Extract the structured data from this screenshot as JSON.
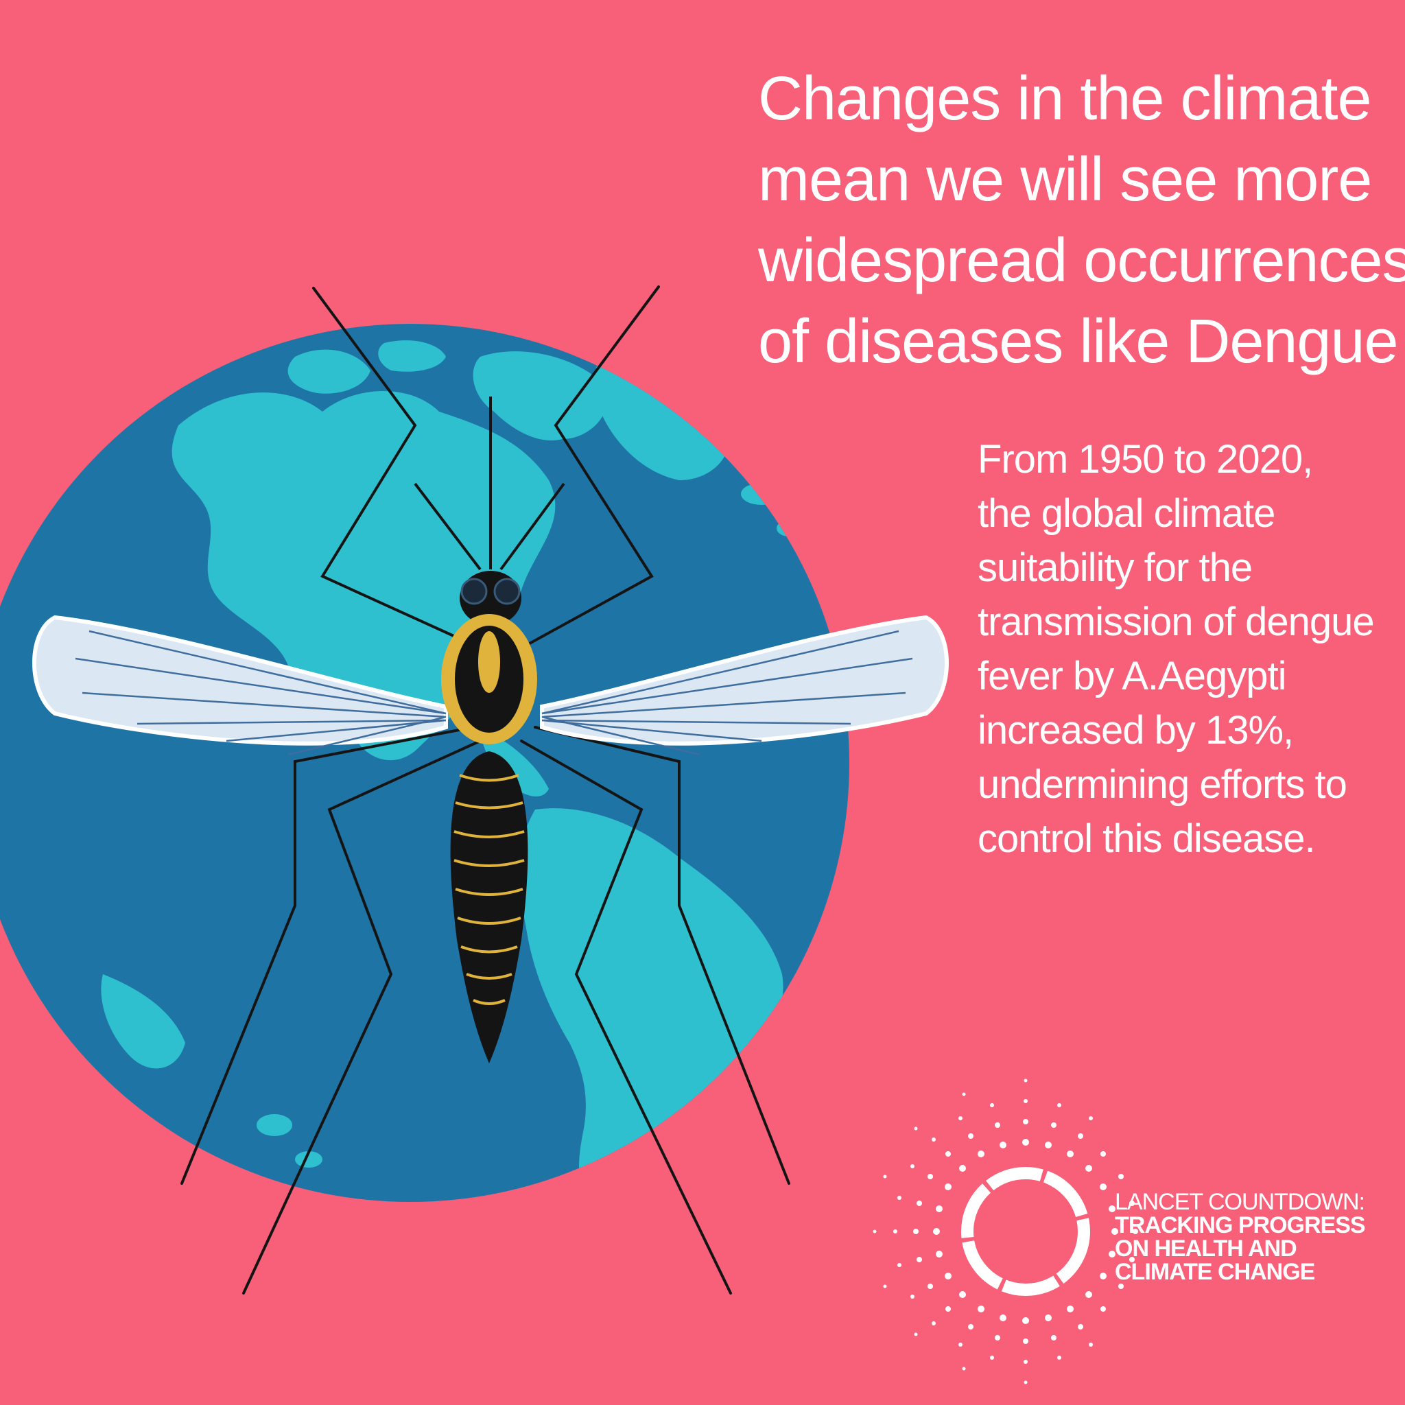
{
  "headline": {
    "lines": [
      "Changes in the climate",
      "mean we will see more",
      "widespread occurrences",
      "of diseases like Dengue"
    ]
  },
  "body": {
    "lines": [
      "From 1950 to 2020,",
      "the global climate",
      "suitability for the",
      "transmission of dengue",
      "fever by A.Aegypti",
      "increased by 13%,",
      "undermining efforts to",
      "control this disease."
    ]
  },
  "logo": {
    "line1": "LANCET COUNTDOWN:",
    "line2": "TRACKING PROGRESS",
    "line3": "ON HEALTH AND",
    "line4": "CLIMATE CHANGE"
  },
  "colors": {
    "background": "#f8607a",
    "ocean": "#1f74a6",
    "land": "#2fc0cf",
    "wing": "#dbe7f2",
    "body": "#141414",
    "stripe": "#e0b33c",
    "text": "#ffffff"
  },
  "icons": [
    "globe-illustration",
    "mosquito-illustration",
    "lancet-countdown-logo-icon"
  ]
}
